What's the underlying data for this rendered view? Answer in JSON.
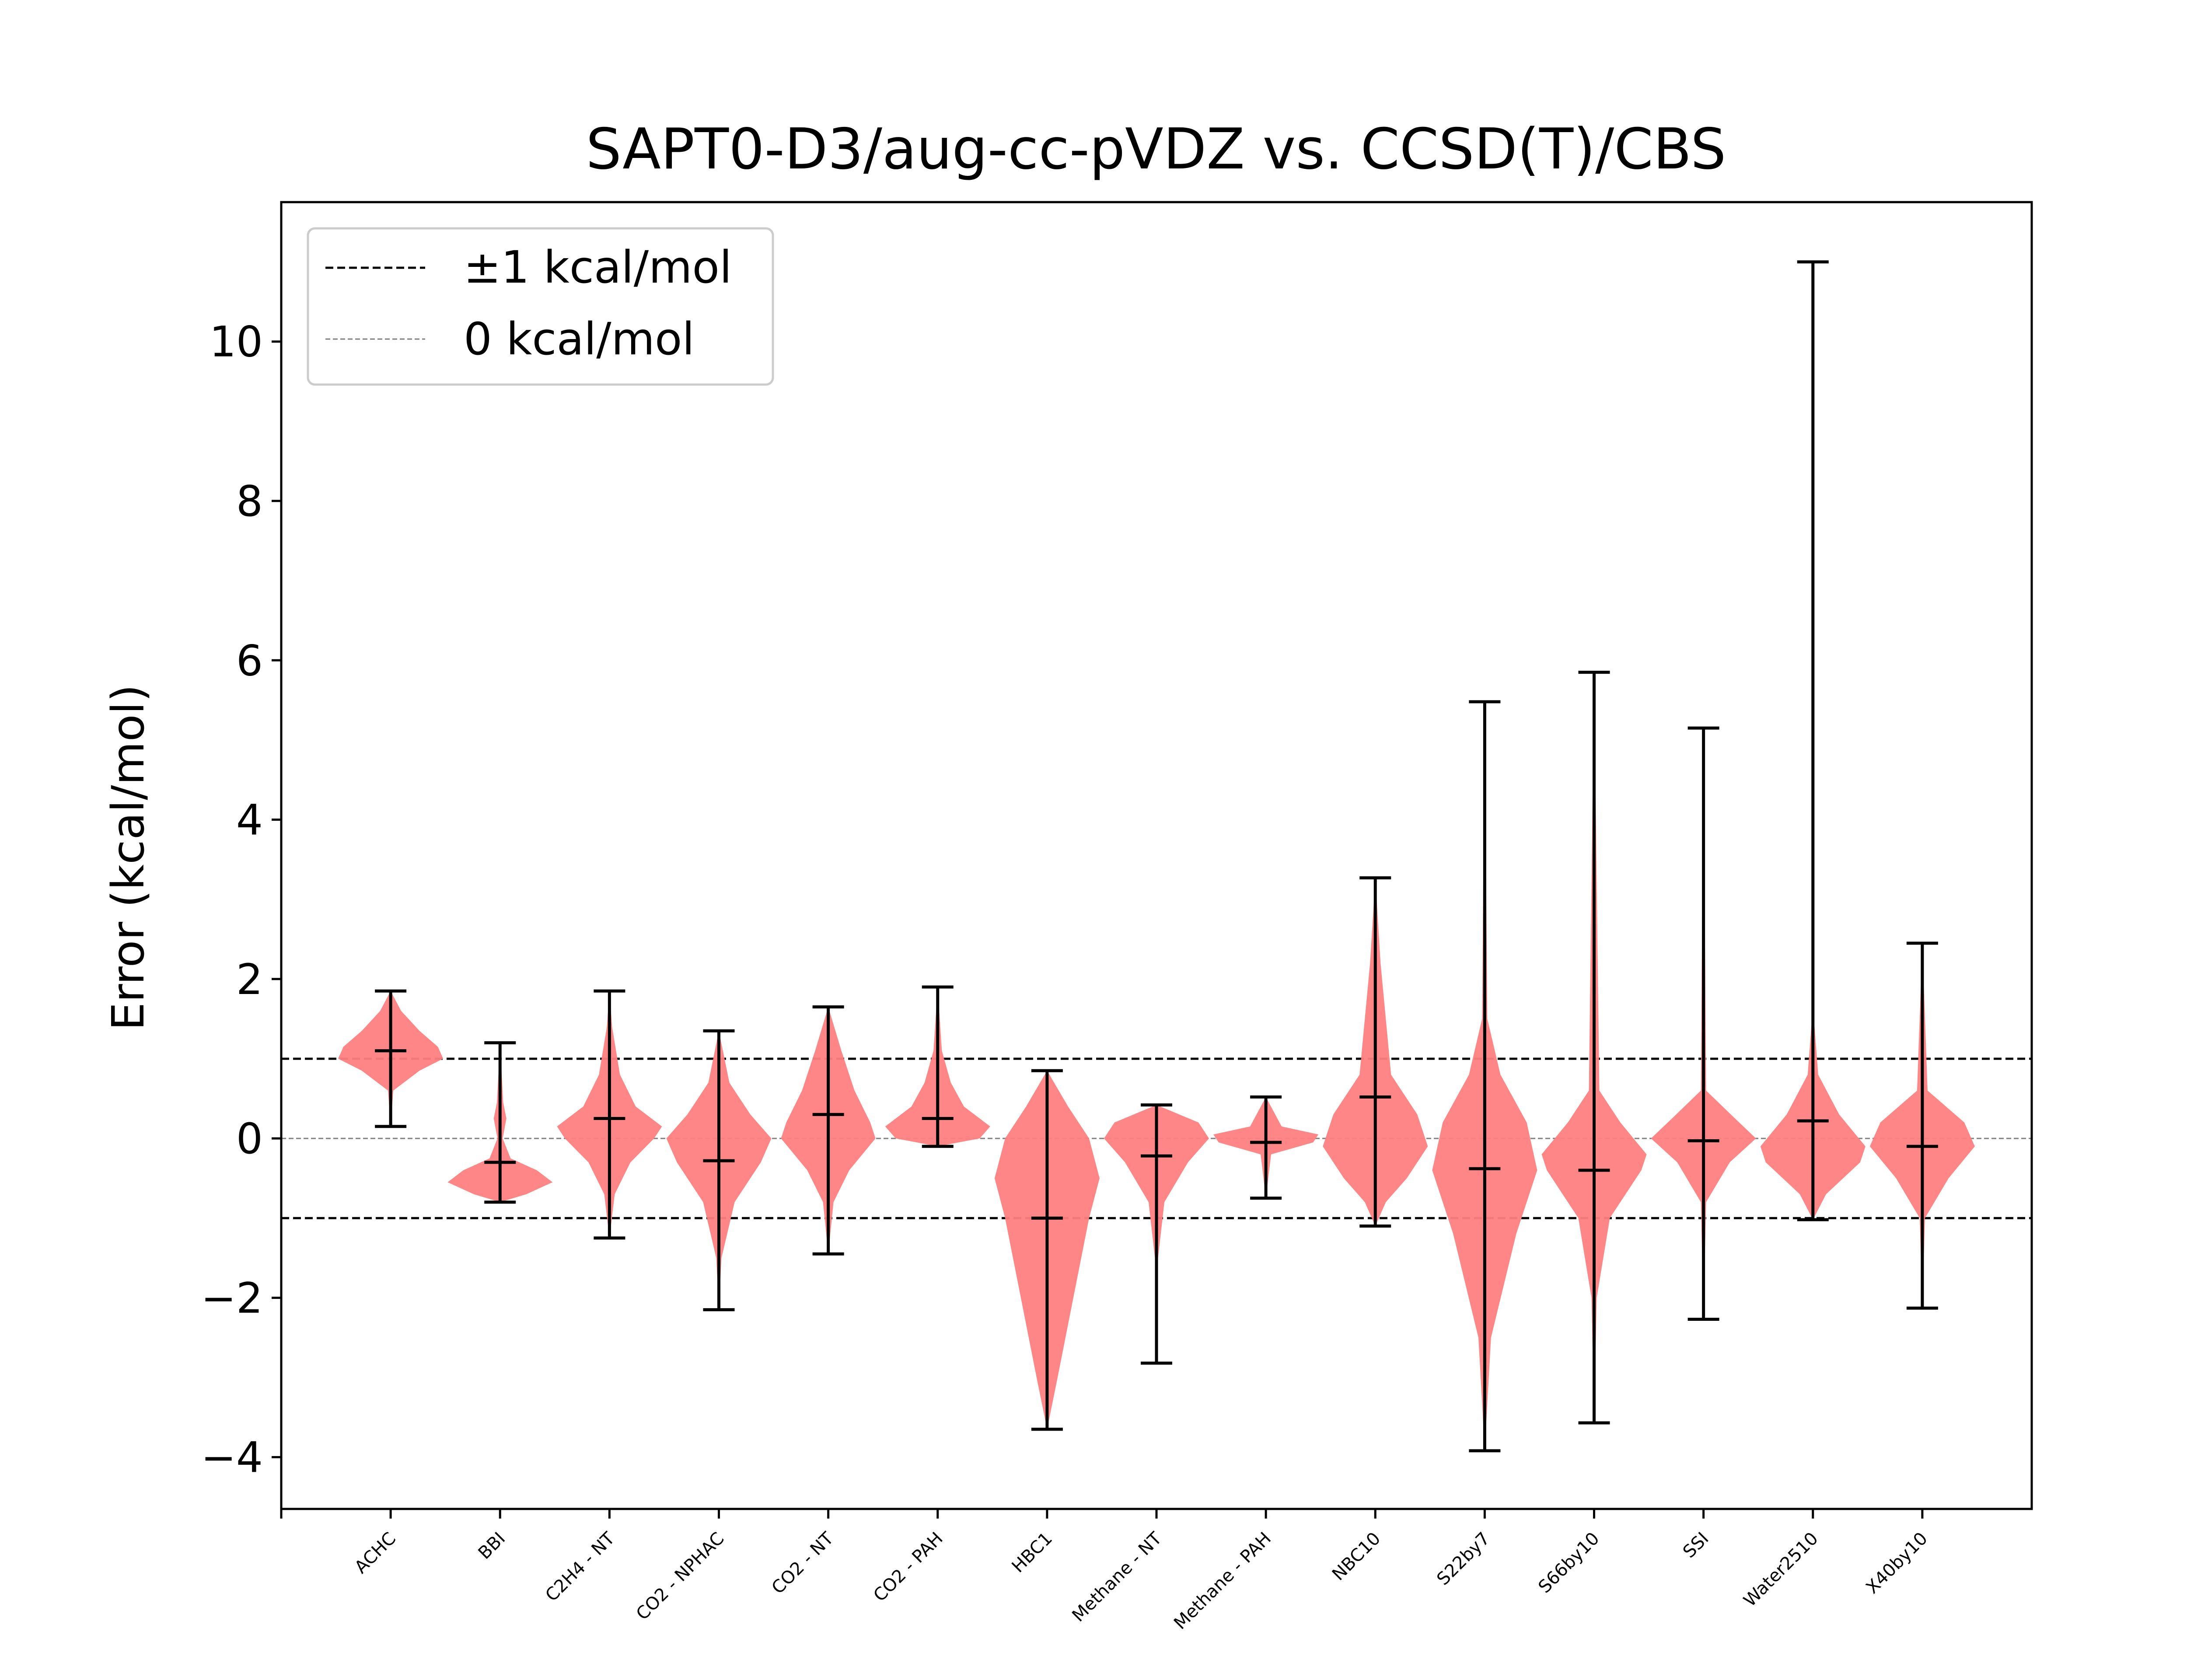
{
  "chart_data": {
    "type": "violin",
    "title": "SAPT0-D3/aug-cc-pVDZ vs. CCSD(T)/CBS",
    "xlabel": "",
    "ylabel": "Error (kcal/mol)",
    "ylim": [
      -4.65,
      11.75
    ],
    "yticks": [
      -4,
      -2,
      0,
      2,
      4,
      6,
      8,
      10
    ],
    "yticklabels": [
      "−4",
      "−2",
      "0",
      "2",
      "4",
      "6",
      "8",
      "10"
    ],
    "grid": false,
    "legend_position": "upper-left",
    "colors": {
      "violin": "#ff7f7f",
      "whisker": "#000000",
      "ref_line_1": "#000000",
      "ref_line_0": "#808080"
    },
    "reference_lines": [
      {
        "name": "±1 kcal/mol",
        "values": [
          1,
          -1
        ],
        "style": "dashed",
        "color": "#000000"
      },
      {
        "name": "0 kcal/mol",
        "values": [
          0
        ],
        "style": "dashed-thin",
        "color": "#808080"
      }
    ],
    "categories": [
      "ACHC",
      "BBI",
      "C2H4 - NT",
      "CO2 - NPHAC",
      "CO2 - NT",
      "CO2 - PAH",
      "HBC1",
      "Methane - NT",
      "Methane - PAH",
      "NBC10",
      "S22by7",
      "S66by10",
      "SSI",
      "Water2510",
      "X40by10"
    ],
    "series": [
      {
        "min": 0.15,
        "max": 1.85,
        "mean": 1.1,
        "density": [
          [
            0.15,
            0
          ],
          [
            0.6,
            0.05
          ],
          [
            0.85,
            0.55
          ],
          [
            1.0,
            1.0
          ],
          [
            1.15,
            0.9
          ],
          [
            1.35,
            0.55
          ],
          [
            1.6,
            0.2
          ],
          [
            1.85,
            0
          ]
        ]
      },
      {
        "min": -0.8,
        "max": 1.2,
        "mean": -0.3,
        "density": [
          [
            -0.8,
            0
          ],
          [
            -0.7,
            0.5
          ],
          [
            -0.55,
            1.0
          ],
          [
            -0.4,
            0.7
          ],
          [
            -0.25,
            0.2
          ],
          [
            0,
            0.05
          ],
          [
            0.25,
            0.12
          ],
          [
            0.45,
            0.06
          ],
          [
            1.2,
            0
          ]
        ]
      },
      {
        "min": -1.25,
        "max": 1.85,
        "mean": 0.25,
        "density": [
          [
            -1.25,
            0
          ],
          [
            -0.7,
            0.1
          ],
          [
            -0.3,
            0.4
          ],
          [
            0,
            0.85
          ],
          [
            0.15,
            1.0
          ],
          [
            0.4,
            0.5
          ],
          [
            0.8,
            0.2
          ],
          [
            1.4,
            0.05
          ],
          [
            1.85,
            0
          ]
        ]
      },
      {
        "min": -2.15,
        "max": 1.35,
        "mean": -0.28,
        "density": [
          [
            -2.15,
            0
          ],
          [
            -1.5,
            0.05
          ],
          [
            -0.8,
            0.3
          ],
          [
            -0.3,
            0.8
          ],
          [
            0,
            1.0
          ],
          [
            0.3,
            0.6
          ],
          [
            0.7,
            0.2
          ],
          [
            1.35,
            0
          ]
        ]
      },
      {
        "min": -1.45,
        "max": 1.65,
        "mean": 0.3,
        "density": [
          [
            -1.45,
            0
          ],
          [
            -0.8,
            0.1
          ],
          [
            -0.4,
            0.4
          ],
          [
            0,
            0.9
          ],
          [
            0.2,
            0.8
          ],
          [
            0.6,
            0.5
          ],
          [
            1.1,
            0.25
          ],
          [
            1.65,
            0
          ]
        ]
      },
      {
        "min": -0.1,
        "max": 1.9,
        "mean": 0.25,
        "density": [
          [
            -0.1,
            0
          ],
          [
            0,
            0.8
          ],
          [
            0.15,
            1.0
          ],
          [
            0.4,
            0.5
          ],
          [
            0.7,
            0.25
          ],
          [
            1.1,
            0.08
          ],
          [
            1.9,
            0
          ]
        ]
      },
      {
        "min": -3.65,
        "max": 0.85,
        "mean": -1.0,
        "density": [
          [
            -3.65,
            0
          ],
          [
            -3.0,
            0.2
          ],
          [
            -2.0,
            0.5
          ],
          [
            -1.0,
            0.8
          ],
          [
            -0.5,
            1.0
          ],
          [
            0,
            0.8
          ],
          [
            0.4,
            0.4
          ],
          [
            0.85,
            0
          ]
        ]
      },
      {
        "min": -2.82,
        "max": 0.42,
        "mean": -0.22,
        "density": [
          [
            -2.82,
            0
          ],
          [
            -1.5,
            0.03
          ],
          [
            -0.8,
            0.15
          ],
          [
            -0.3,
            0.6
          ],
          [
            0,
            1.0
          ],
          [
            0.2,
            0.8
          ],
          [
            0.42,
            0
          ]
        ]
      },
      {
        "min": -0.75,
        "max": 0.52,
        "mean": -0.05,
        "density": [
          [
            -0.75,
            0
          ],
          [
            -0.2,
            0.1
          ],
          [
            -0.05,
            0.9
          ],
          [
            0.05,
            1.0
          ],
          [
            0.15,
            0.3
          ],
          [
            0.52,
            0
          ]
        ]
      },
      {
        "min": -1.1,
        "max": 3.27,
        "mean": 0.52,
        "density": [
          [
            -1.1,
            0
          ],
          [
            -0.8,
            0.2
          ],
          [
            -0.5,
            0.6
          ],
          [
            -0.1,
            1.0
          ],
          [
            0.3,
            0.8
          ],
          [
            0.8,
            0.3
          ],
          [
            1.5,
            0.2
          ],
          [
            2.2,
            0.1
          ],
          [
            3.27,
            0
          ]
        ]
      },
      {
        "min": -3.92,
        "max": 5.48,
        "mean": -0.38,
        "density": [
          [
            -3.92,
            0
          ],
          [
            -2.5,
            0.12
          ],
          [
            -1.2,
            0.6
          ],
          [
            -0.4,
            1.0
          ],
          [
            0.2,
            0.8
          ],
          [
            0.8,
            0.3
          ],
          [
            1.5,
            0.05
          ],
          [
            5.48,
            0
          ]
        ]
      },
      {
        "min": -3.57,
        "max": 5.85,
        "mean": -0.4,
        "density": [
          [
            -3.57,
            0
          ],
          [
            -2.0,
            0.05
          ],
          [
            -1.0,
            0.3
          ],
          [
            -0.4,
            0.9
          ],
          [
            -0.2,
            1.0
          ],
          [
            0.2,
            0.5
          ],
          [
            0.6,
            0.1
          ],
          [
            5.85,
            0
          ]
        ]
      },
      {
        "min": -2.27,
        "max": 5.15,
        "mean": -0.03,
        "density": [
          [
            -2.27,
            0
          ],
          [
            -0.8,
            0.05
          ],
          [
            -0.3,
            0.5
          ],
          [
            0,
            1.0
          ],
          [
            0.25,
            0.6
          ],
          [
            0.6,
            0.05
          ],
          [
            5.15,
            0
          ]
        ]
      },
      {
        "min": -1.02,
        "max": 11.0,
        "mean": 0.22,
        "density": [
          [
            -1.02,
            0
          ],
          [
            -0.7,
            0.25
          ],
          [
            -0.3,
            0.9
          ],
          [
            -0.1,
            1.0
          ],
          [
            0.3,
            0.5
          ],
          [
            0.8,
            0.1
          ],
          [
            1.5,
            0.02
          ],
          [
            11.0,
            0
          ]
        ]
      },
      {
        "min": -2.13,
        "max": 2.45,
        "mean": -0.1,
        "density": [
          [
            -2.13,
            0
          ],
          [
            -1.0,
            0.05
          ],
          [
            -0.5,
            0.5
          ],
          [
            -0.1,
            1.0
          ],
          [
            0.2,
            0.8
          ],
          [
            0.6,
            0.1
          ],
          [
            2.45,
            0
          ]
        ]
      }
    ]
  }
}
